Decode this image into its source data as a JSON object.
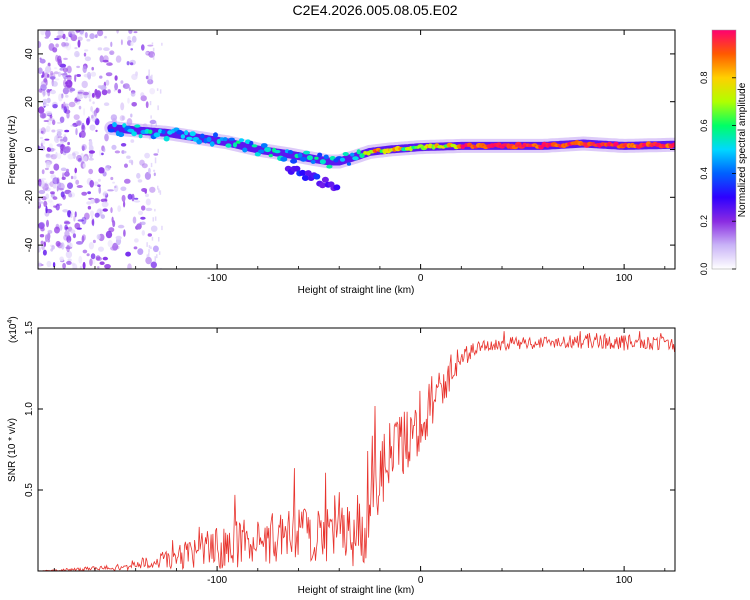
{
  "page_title": "C2E4.2026.005.08.05.E02",
  "colorbar": {
    "label": "Normalized spectral amplitude",
    "ticks": [
      "0.0",
      "0.2",
      "0.4",
      "0.6",
      "0.8"
    ],
    "tick_values": [
      0.0,
      0.2,
      0.4,
      0.6,
      0.8
    ],
    "range": [
      0,
      1
    ],
    "colormap": [
      "#ffffff",
      "#c9b3f7",
      "#8a2be2",
      "#2e00ff",
      "#0060ff",
      "#00d8ff",
      "#00ff66",
      "#b0ff00",
      "#ffd000",
      "#ff5a00",
      "#ff0070"
    ]
  },
  "chart_data": [
    {
      "type": "heatmap",
      "title": "C2E4.2026.005.08.05.E02",
      "xlabel": "Height of straight line (km)",
      "ylabel": "Frequency (Hz)",
      "xlim": [
        -188,
        125
      ],
      "ylim": [
        -50,
        50
      ],
      "x_ticks": [
        -100,
        0,
        100
      ],
      "x_tick_labels": [
        "-100",
        "0",
        "100"
      ],
      "y_ticks": [
        -40,
        -20,
        0,
        20,
        40
      ],
      "y_tick_labels": [
        "-40",
        "-20",
        "0",
        "20",
        "40"
      ],
      "ridge": {
        "x": [
          -152,
          -140,
          -125,
          -110,
          -95,
          -80,
          -65,
          -52,
          -45,
          -40,
          -36,
          -32,
          -25,
          -15,
          0,
          20,
          40,
          60,
          80,
          100,
          125
        ],
        "y": [
          9,
          8,
          7,
          5,
          3,
          0,
          -2,
          -4,
          -5,
          -5,
          -4,
          -3,
          -1,
          0,
          1,
          1.5,
          1.5,
          1.5,
          2.5,
          1.5,
          2
        ]
      },
      "branch": {
        "x": [
          -65,
          -58,
          -52,
          -47,
          -43,
          -40
        ],
        "y": [
          -8,
          -10,
          -12,
          -14,
          -15,
          -14
        ]
      },
      "noise_x_range": [
        -188,
        -130
      ]
    },
    {
      "type": "line",
      "xlabel": "Height of straight line (km)",
      "ylabel": "SNR (10 * v/v)",
      "y_multiplier": "(x10",
      "y_multiplier_exp": "4",
      "y_multiplier_close": ")",
      "xlim": [
        -188,
        125
      ],
      "ylim": [
        0,
        1.5
      ],
      "x_ticks": [
        -100,
        0,
        100
      ],
      "x_tick_labels": [
        "-100",
        "0",
        "100"
      ],
      "y_ticks": [
        0.5,
        1.0,
        1.5
      ],
      "y_tick_labels": [
        "0.5",
        "1.0",
        "1.5"
      ],
      "series": [
        {
          "name": "SNR",
          "color": "#e8332d",
          "x": [
            -188,
            -170,
            -150,
            -140,
            -130,
            -120,
            -110,
            -100,
            -90,
            -80,
            -70,
            -60,
            -50,
            -45,
            -40,
            -35,
            -30,
            -27,
            -24,
            -20,
            -15,
            -10,
            -5,
            0,
            5,
            10,
            15,
            20,
            25,
            30,
            40,
            50,
            60,
            70,
            80,
            90,
            100,
            110,
            120,
            125
          ],
          "y": [
            0.0,
            0.01,
            0.02,
            0.04,
            0.06,
            0.08,
            0.12,
            0.14,
            0.17,
            0.2,
            0.2,
            0.22,
            0.24,
            0.26,
            0.28,
            0.22,
            0.24,
            0.4,
            0.55,
            0.6,
            0.7,
            0.78,
            0.85,
            0.95,
            1.02,
            1.12,
            1.22,
            1.3,
            1.36,
            1.39,
            1.4,
            1.41,
            1.41,
            1.42,
            1.42,
            1.42,
            1.41,
            1.41,
            1.42,
            1.4
          ],
          "noise_amplitude": [
            0.0,
            0.01,
            0.02,
            0.03,
            0.05,
            0.07,
            0.1,
            0.14,
            0.15,
            0.16,
            0.16,
            0.17,
            0.18,
            0.2,
            0.22,
            0.2,
            0.3,
            0.35,
            0.3,
            0.28,
            0.25,
            0.22,
            0.2,
            0.22,
            0.2,
            0.12,
            0.1,
            0.08,
            0.05,
            0.04,
            0.04,
            0.04,
            0.04,
            0.04,
            0.05,
            0.05,
            0.05,
            0.05,
            0.05,
            0.05
          ]
        }
      ]
    }
  ]
}
